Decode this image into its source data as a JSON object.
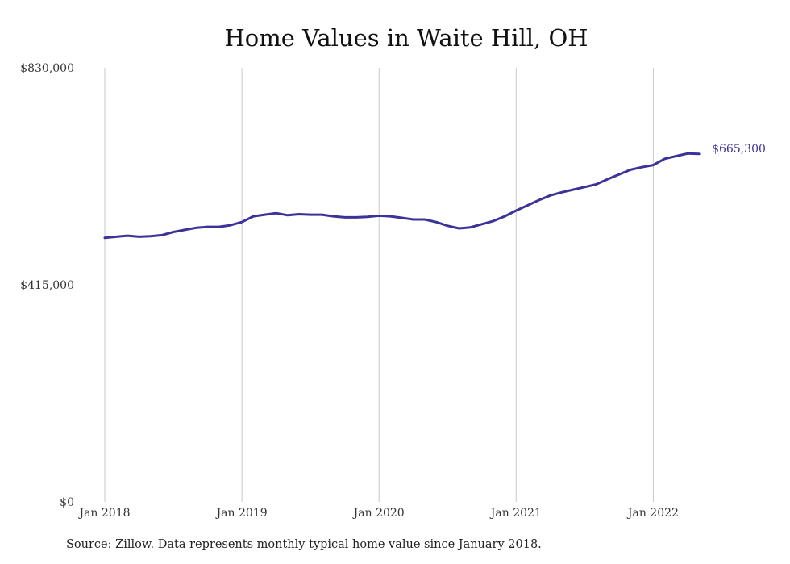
{
  "chart_data": {
    "type": "line",
    "title": "Home Values in Waite Hill, OH",
    "xlabel": "",
    "ylabel": "",
    "ylim": [
      0,
      830000
    ],
    "y_ticks": [
      {
        "value": 0,
        "label": "$0"
      },
      {
        "value": 415000,
        "label": "$415,000"
      },
      {
        "value": 830000,
        "label": "$830,000"
      }
    ],
    "x_ticks": [
      {
        "month_index": 0,
        "label": "Jan 2018"
      },
      {
        "month_index": 12,
        "label": "Jan 2019"
      },
      {
        "month_index": 24,
        "label": "Jan 2020"
      },
      {
        "month_index": 36,
        "label": "Jan 2021"
      },
      {
        "month_index": 48,
        "label": "Jan 2022"
      }
    ],
    "grid": {
      "vertical": true,
      "horizontal": false
    },
    "line_color": "#3c3399",
    "end_label": "$665,300",
    "series": [
      {
        "name": "",
        "x": [
          "2018-01",
          "2018-02",
          "2018-03",
          "2018-04",
          "2018-05",
          "2018-06",
          "2018-07",
          "2018-08",
          "2018-09",
          "2018-10",
          "2018-11",
          "2018-12",
          "2019-01",
          "2019-02",
          "2019-03",
          "2019-04",
          "2019-05",
          "2019-06",
          "2019-07",
          "2019-08",
          "2019-09",
          "2019-10",
          "2019-11",
          "2019-12",
          "2020-01",
          "2020-02",
          "2020-03",
          "2020-04",
          "2020-05",
          "2020-06",
          "2020-07",
          "2020-08",
          "2020-09",
          "2020-10",
          "2020-11",
          "2020-12",
          "2021-01",
          "2021-02",
          "2021-03",
          "2021-04",
          "2021-05",
          "2021-06",
          "2021-07",
          "2021-08",
          "2021-09",
          "2021-10",
          "2021-11",
          "2021-12",
          "2022-01",
          "2022-02",
          "2022-03",
          "2022-04",
          "2022-05"
        ],
        "values": [
          505000,
          507000,
          509000,
          507000,
          508000,
          510000,
          516000,
          520000,
          524000,
          526000,
          526000,
          529000,
          535000,
          546000,
          549000,
          552000,
          548000,
          550000,
          549000,
          549000,
          546000,
          544000,
          544000,
          545000,
          547000,
          546000,
          543000,
          540000,
          540000,
          535000,
          528000,
          523000,
          525000,
          531000,
          537000,
          546000,
          557000,
          567000,
          577000,
          586000,
          592000,
          597000,
          602000,
          607000,
          617000,
          626000,
          635000,
          640000,
          644000,
          656000,
          661000,
          666000,
          665300
        ]
      }
    ]
  },
  "footer": {
    "source": "Source: Zillow. Data represents monthly typical home value since January 2018."
  }
}
